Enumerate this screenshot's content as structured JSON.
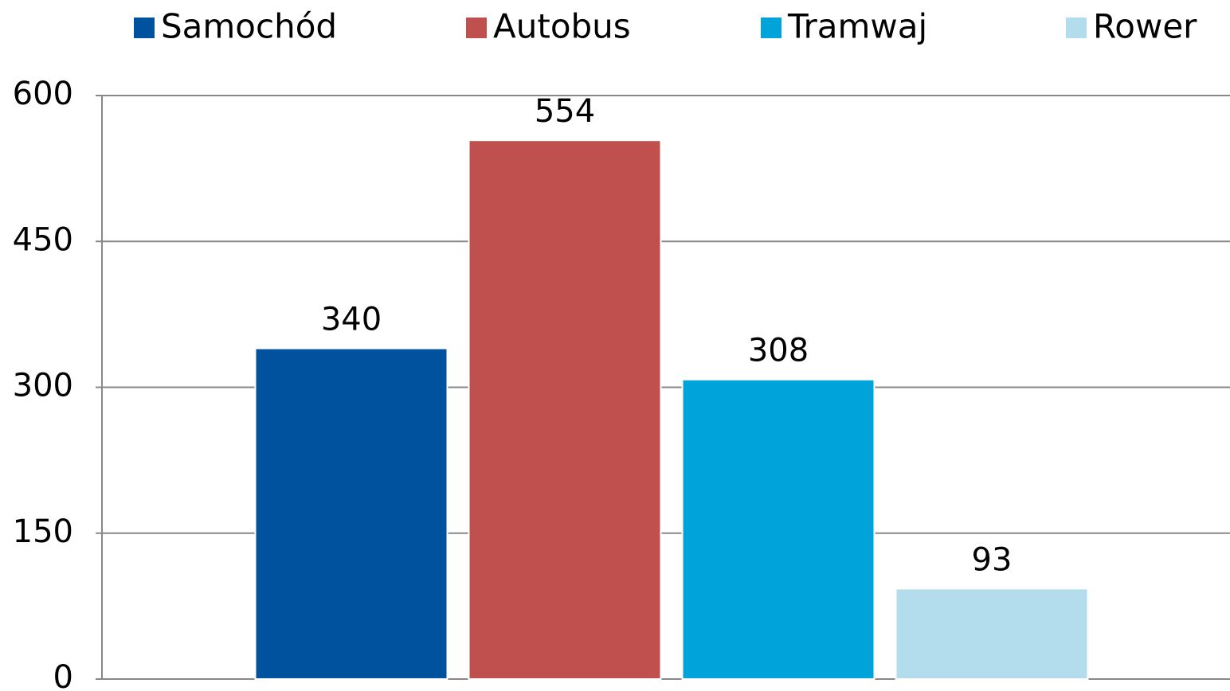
{
  "chart_data": {
    "type": "bar",
    "categories": [
      null
    ],
    "series": [
      {
        "name": "Samochód",
        "color": "#00529f",
        "values": [
          340
        ]
      },
      {
        "name": "Autobus",
        "color": "#c0504d",
        "values": [
          554
        ]
      },
      {
        "name": "Tramwaj",
        "color": "#00a3da",
        "values": [
          308
        ]
      },
      {
        "name": "Rower",
        "color": "#b3dcec",
        "values": [
          93
        ]
      }
    ],
    "ylim": [
      0,
      600
    ],
    "yticks": [
      0,
      150,
      300,
      450,
      600
    ],
    "grid": true,
    "legend": "top"
  }
}
